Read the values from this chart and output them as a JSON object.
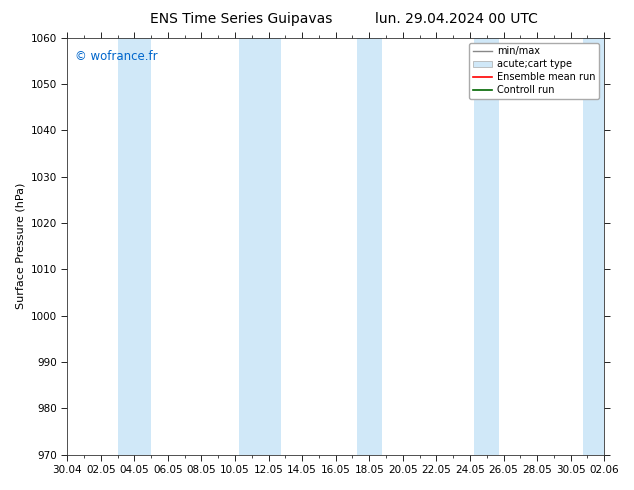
{
  "title_left": "ENS Time Series Guipavas",
  "title_right": "lun. 29.04.2024 00 UTC",
  "ylabel": "Surface Pressure (hPa)",
  "ylim": [
    970,
    1060
  ],
  "yticks": [
    970,
    980,
    990,
    1000,
    1010,
    1020,
    1030,
    1040,
    1050,
    1060
  ],
  "xlim_start": 0,
  "xlim_end": 32,
  "xtick_labels": [
    "30.04",
    "02.05",
    "04.05",
    "06.05",
    "08.05",
    "10.05",
    "12.05",
    "14.05",
    "16.05",
    "18.05",
    "20.05",
    "22.05",
    "24.05",
    "26.05",
    "28.05",
    "30.05",
    "02.06"
  ],
  "xtick_positions": [
    0,
    2,
    4,
    6,
    8,
    10,
    12,
    14,
    16,
    18,
    20,
    22,
    24,
    26,
    28,
    30,
    32
  ],
  "watermark": "© wofrance.fr",
  "watermark_color": "#0066cc",
  "bg_color": "#ffffff",
  "plot_bg_color": "#ffffff",
  "shaded_band_color": "#d0e8f8",
  "shaded_band_alpha": 1.0,
  "shaded_x_centers": [
    4,
    11.5,
    18,
    25,
    31.5
  ],
  "shaded_band_widths": [
    2.0,
    2.5,
    1.5,
    1.5,
    1.5
  ],
  "legend_entries": [
    "min/max",
    "acute;cart type",
    "Ensemble mean run",
    "Controll run"
  ],
  "title_fontsize": 10,
  "label_fontsize": 8,
  "tick_fontsize": 7.5
}
